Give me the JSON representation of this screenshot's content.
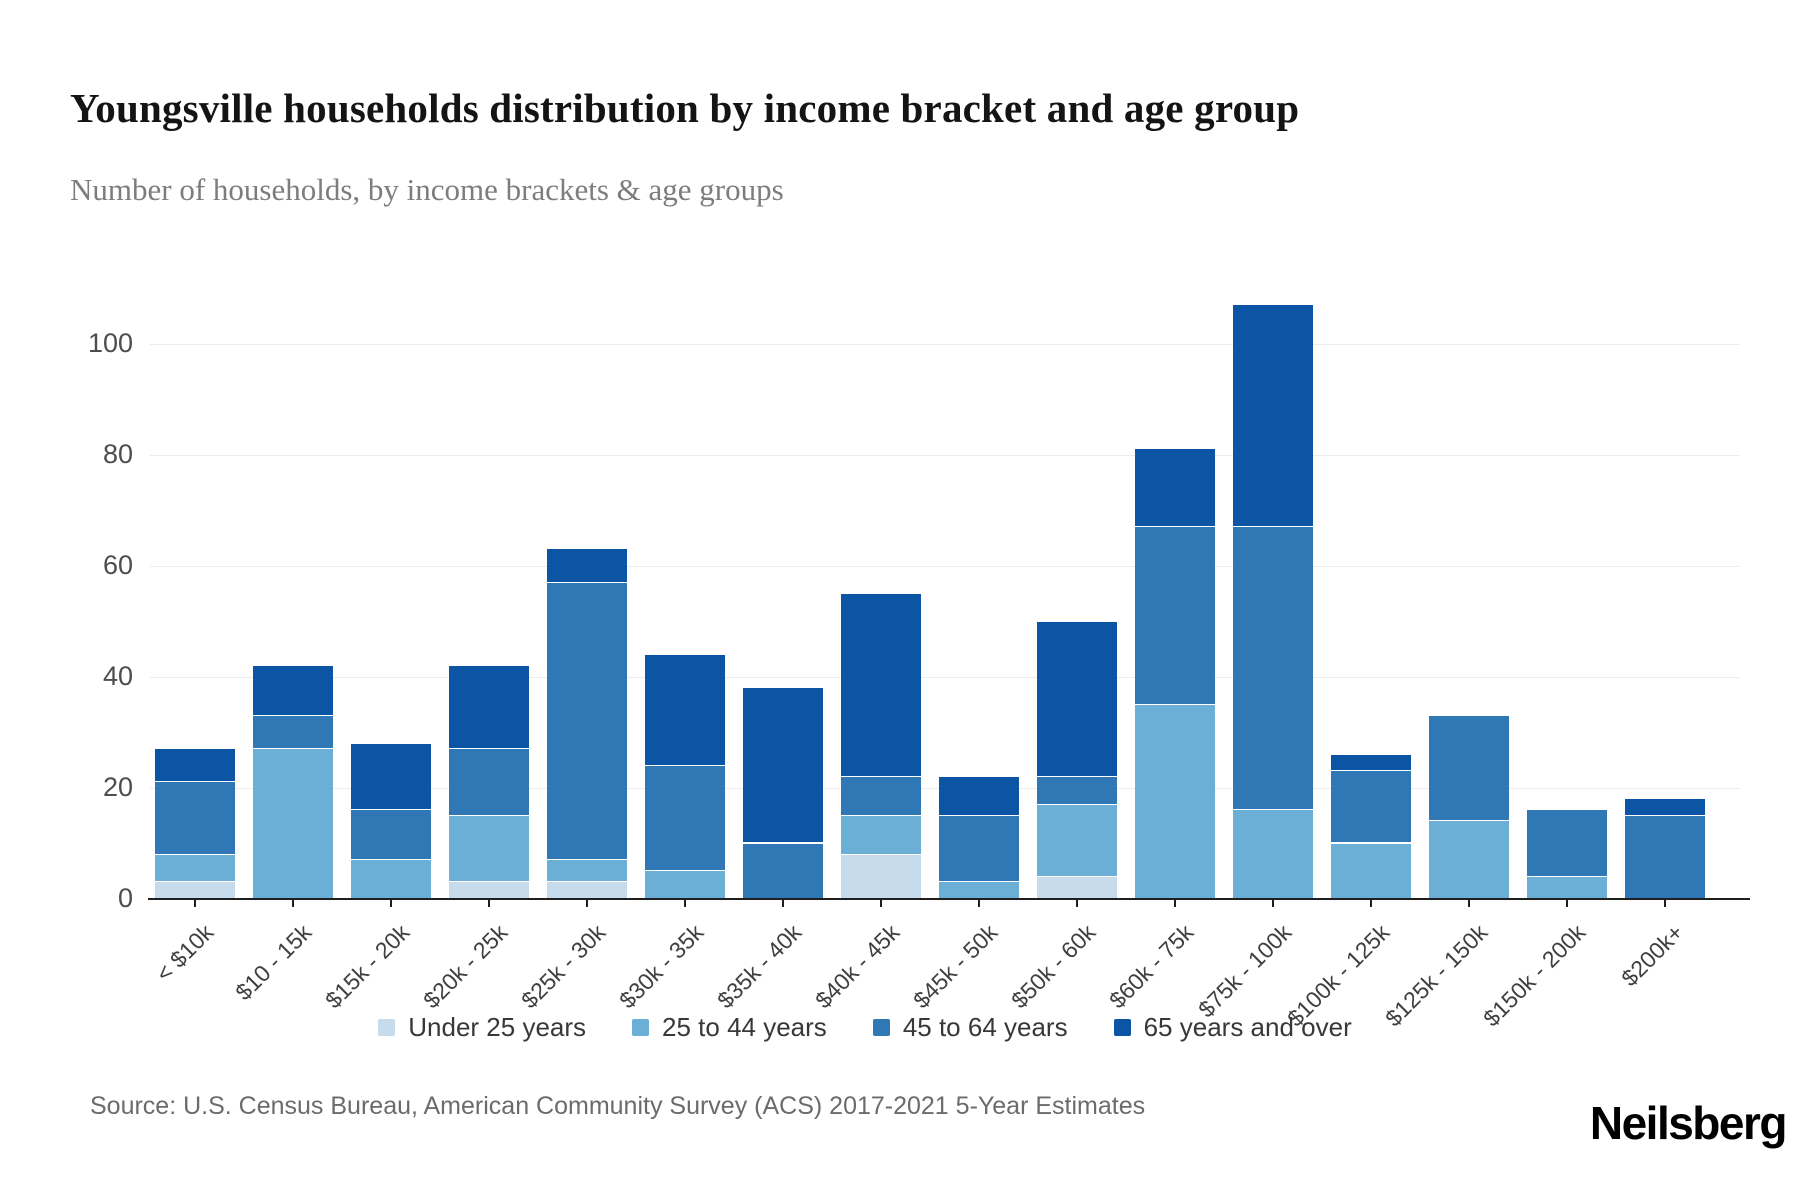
{
  "page": {
    "title": "Youngsville households distribution by income bracket and age group",
    "subtitle": "Number of households, by income brackets & age groups",
    "source": "Source: U.S. Census Bureau, American Community Survey (ACS) 2017-2021 5-Year Estimates",
    "brand": "Neilsberg"
  },
  "chart_data": {
    "type": "bar",
    "stacked": true,
    "title": "Youngsville households distribution by income bracket and age group",
    "subtitle": "Number of households, by income brackets & age groups",
    "xlabel": "",
    "ylabel": "Number of households",
    "ylim": [
      0,
      100
    ],
    "yticks": [
      0,
      20,
      40,
      60,
      80,
      100
    ],
    "grid": true,
    "legend_position": "bottom",
    "categories": [
      "< $10k",
      "$10 - 15k",
      "$15k - 20k",
      "$20k - 25k",
      "$25k - 30k",
      "$30k - 35k",
      "$35k - 40k",
      "$40k - 45k",
      "$45k - 50k",
      "$50k - 60k",
      "$60k - 75k",
      "$75k - 100k",
      "$100k - 125k",
      "$125k - 150k",
      "$150k - 200k",
      "$200k+"
    ],
    "series": [
      {
        "name": "Under 25 years",
        "color": "#c6dbec",
        "values": [
          3,
          0,
          0,
          3,
          3,
          0,
          0,
          8,
          0,
          4,
          0,
          0,
          0,
          0,
          0,
          0
        ]
      },
      {
        "name": "25 to 44 years",
        "color": "#6baed6",
        "values": [
          5,
          27,
          7,
          12,
          4,
          5,
          0,
          7,
          3,
          13,
          35,
          16,
          10,
          14,
          4,
          0
        ]
      },
      {
        "name": "45 to 64 years",
        "color": "#3077b5",
        "values": [
          13,
          6,
          9,
          12,
          50,
          19,
          10,
          7,
          12,
          5,
          32,
          51,
          13,
          19,
          12,
          15
        ]
      },
      {
        "name": "65 years and over",
        "color": "#0b55a4",
        "values": [
          6,
          9,
          12,
          15,
          6,
          20,
          28,
          33,
          7,
          28,
          14,
          40,
          3,
          0,
          0,
          3
        ]
      }
    ],
    "totals": [
      27,
      42,
      28,
      42,
      63,
      44,
      38,
      55,
      22,
      50,
      81,
      107,
      26,
      33,
      16,
      18
    ]
  }
}
